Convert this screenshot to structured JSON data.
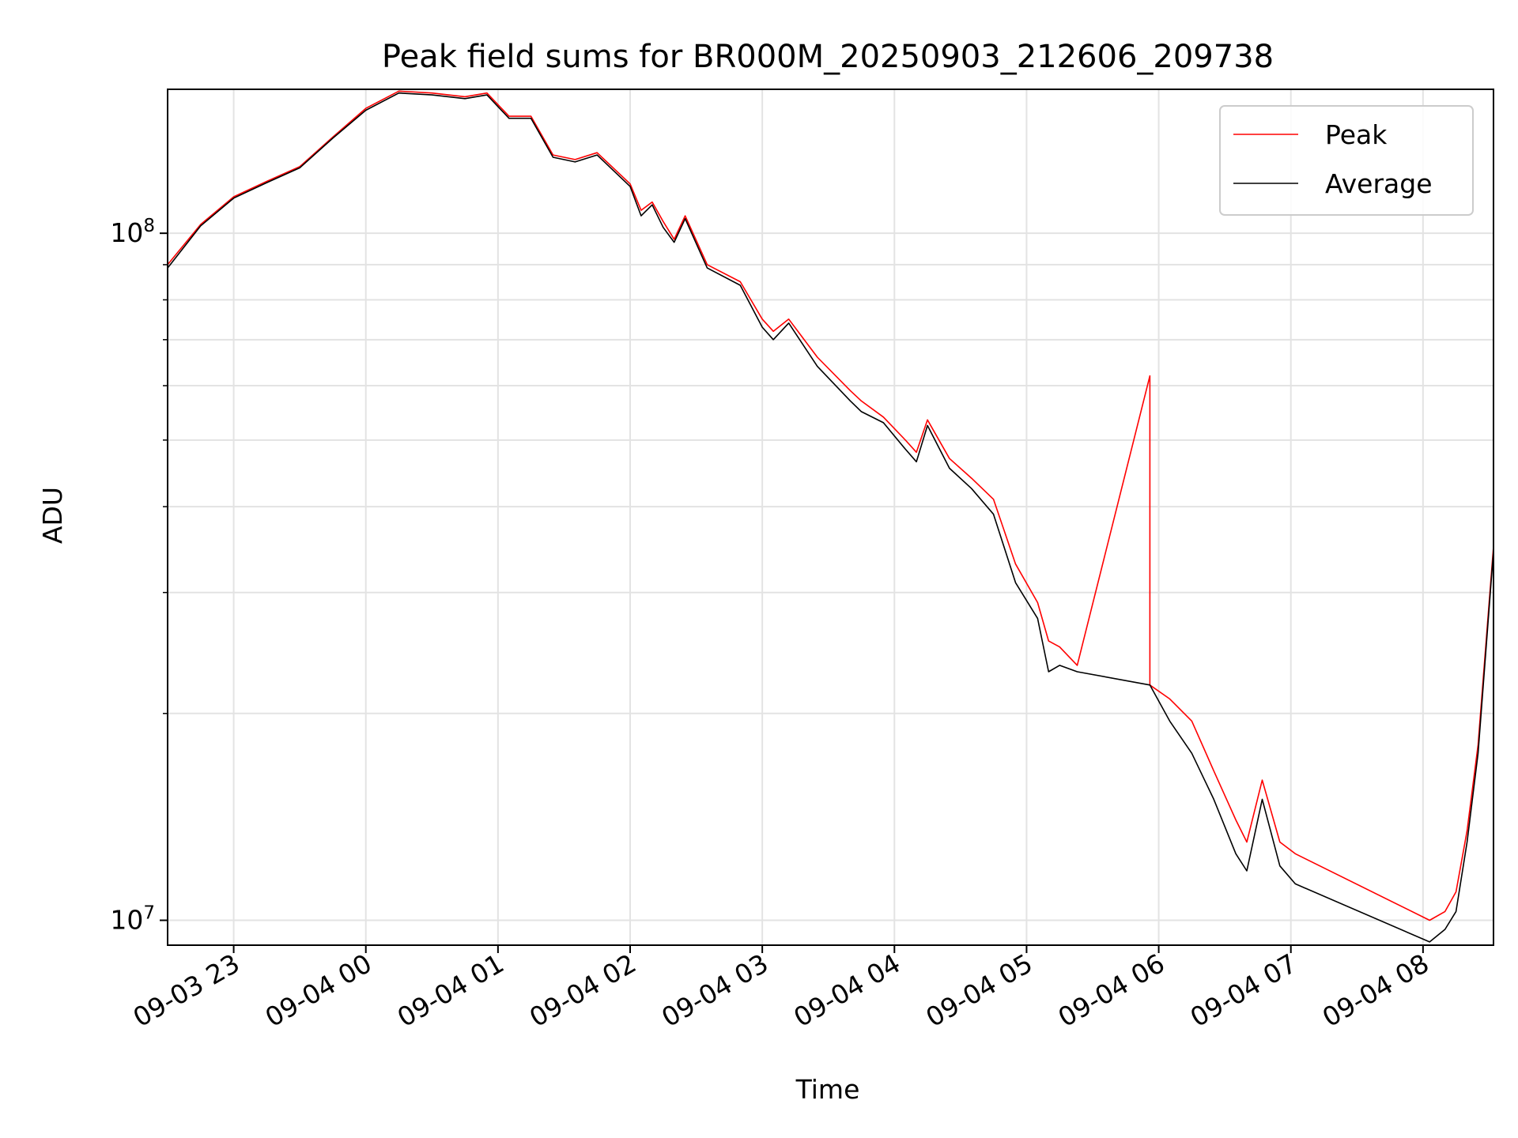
{
  "chart_data": {
    "type": "line",
    "title": "Peak field sums for BR000M_20250903_212606_209738",
    "xlabel": "Time",
    "ylabel": "ADU",
    "x_scale": "time",
    "y_scale": "log",
    "xlim": [
      "2025-09-03 22:30",
      "2025-09-04 08:32"
    ],
    "ylim": [
      9200000,
      162000000
    ],
    "x_ticks": [
      {
        "t": "2025-09-03 23:00",
        "label": "09-03 23"
      },
      {
        "t": "2025-09-04 00:00",
        "label": "09-04 00"
      },
      {
        "t": "2025-09-04 01:00",
        "label": "09-04 01"
      },
      {
        "t": "2025-09-04 02:00",
        "label": "09-04 02"
      },
      {
        "t": "2025-09-04 03:00",
        "label": "09-04 03"
      },
      {
        "t": "2025-09-04 04:00",
        "label": "09-04 04"
      },
      {
        "t": "2025-09-04 05:00",
        "label": "09-04 05"
      },
      {
        "t": "2025-09-04 06:00",
        "label": "09-04 06"
      },
      {
        "t": "2025-09-04 07:00",
        "label": "09-04 07"
      },
      {
        "t": "2025-09-04 08:00",
        "label": "09-04 08"
      }
    ],
    "y_ticks_major": [
      {
        "value": 10000000,
        "base": "10",
        "exp": "7"
      },
      {
        "value": 100000000,
        "base": "10",
        "exp": "8"
      }
    ],
    "y_ticks_minor": [
      20000000,
      30000000,
      40000000,
      50000000,
      60000000,
      70000000,
      80000000,
      90000000
    ],
    "grid": true,
    "legend_position": "top-right",
    "series": [
      {
        "name": "Peak",
        "color": "#ff0000",
        "points": [
          [
            "2025-09-03 22:30",
            90000000
          ],
          [
            "2025-09-03 22:45",
            103000000
          ],
          [
            "2025-09-03 23:00",
            113000000
          ],
          [
            "2025-09-03 23:15",
            119000000
          ],
          [
            "2025-09-03 23:30",
            125000000
          ],
          [
            "2025-09-03 23:45",
            138000000
          ],
          [
            "2025-09-04 00:00",
            152000000
          ],
          [
            "2025-09-04 00:15",
            161000000
          ],
          [
            "2025-09-04 00:30",
            160000000
          ],
          [
            "2025-09-04 00:45",
            158000000
          ],
          [
            "2025-09-04 00:55",
            160000000
          ],
          [
            "2025-09-04 01:05",
            148000000
          ],
          [
            "2025-09-04 01:15",
            148000000
          ],
          [
            "2025-09-04 01:25",
            130000000
          ],
          [
            "2025-09-04 01:35",
            128000000
          ],
          [
            "2025-09-04 01:45",
            131000000
          ],
          [
            "2025-09-04 02:00",
            118000000
          ],
          [
            "2025-09-04 02:05",
            108000000
          ],
          [
            "2025-09-04 02:10",
            111000000
          ],
          [
            "2025-09-04 02:15",
            104000000
          ],
          [
            "2025-09-04 02:20",
            98000000
          ],
          [
            "2025-09-04 02:25",
            106000000
          ],
          [
            "2025-09-04 02:35",
            90000000
          ],
          [
            "2025-09-04 02:50",
            85000000
          ],
          [
            "2025-09-04 03:00",
            75000000
          ],
          [
            "2025-09-04 03:05",
            72000000
          ],
          [
            "2025-09-04 03:12",
            75000000
          ],
          [
            "2025-09-04 03:25",
            66000000
          ],
          [
            "2025-09-04 03:40",
            59000000
          ],
          [
            "2025-09-04 03:45",
            57000000
          ],
          [
            "2025-09-04 03:55",
            54000000
          ],
          [
            "2025-09-04 04:05",
            50000000
          ],
          [
            "2025-09-04 04:10",
            48000000
          ],
          [
            "2025-09-04 04:15",
            53500000
          ],
          [
            "2025-09-04 04:25",
            47000000
          ],
          [
            "2025-09-04 04:35",
            44000000
          ],
          [
            "2025-09-04 04:45",
            41000000
          ],
          [
            "2025-09-04 04:55",
            33000000
          ],
          [
            "2025-09-04 05:05",
            29000000
          ],
          [
            "2025-09-04 05:10",
            25500000
          ],
          [
            "2025-09-04 05:15",
            25000000
          ],
          [
            "2025-09-04 05:23",
            23500000
          ],
          [
            "2025-09-04 05:56",
            62000000
          ],
          [
            "2025-09-04 05:56",
            22000000
          ],
          [
            "2025-09-04 06:05",
            21000000
          ],
          [
            "2025-09-04 06:15",
            19500000
          ],
          [
            "2025-09-04 06:25",
            16500000
          ],
          [
            "2025-09-04 06:35",
            14000000
          ],
          [
            "2025-09-04 06:40",
            13000000
          ],
          [
            "2025-09-04 06:47",
            16000000
          ],
          [
            "2025-09-04 06:55",
            13000000
          ],
          [
            "2025-09-04 07:02",
            12500000
          ],
          [
            "2025-09-04 08:03",
            10000000
          ],
          [
            "2025-09-04 08:10",
            10300000
          ],
          [
            "2025-09-04 08:15",
            11000000
          ],
          [
            "2025-09-04 08:20",
            13500000
          ],
          [
            "2025-09-04 08:25",
            18000000
          ],
          [
            "2025-09-04 08:32",
            35000000
          ]
        ]
      },
      {
        "name": "Average",
        "color": "#000000",
        "points": [
          [
            "2025-09-03 22:30",
            89000000
          ],
          [
            "2025-09-03 22:45",
            102500000
          ],
          [
            "2025-09-03 23:00",
            112500000
          ],
          [
            "2025-09-03 23:15",
            118500000
          ],
          [
            "2025-09-03 23:30",
            124500000
          ],
          [
            "2025-09-03 23:45",
            137500000
          ],
          [
            "2025-09-04 00:00",
            151000000
          ],
          [
            "2025-09-04 00:15",
            160000000
          ],
          [
            "2025-09-04 00:30",
            159000000
          ],
          [
            "2025-09-04 00:45",
            157000000
          ],
          [
            "2025-09-04 00:55",
            159000000
          ],
          [
            "2025-09-04 01:05",
            147000000
          ],
          [
            "2025-09-04 01:15",
            147000000
          ],
          [
            "2025-09-04 01:25",
            129000000
          ],
          [
            "2025-09-04 01:35",
            127000000
          ],
          [
            "2025-09-04 01:45",
            130000000
          ],
          [
            "2025-09-04 02:00",
            117000000
          ],
          [
            "2025-09-04 02:05",
            106000000
          ],
          [
            "2025-09-04 02:10",
            110000000
          ],
          [
            "2025-09-04 02:15",
            102000000
          ],
          [
            "2025-09-04 02:20",
            97000000
          ],
          [
            "2025-09-04 02:25",
            105000000
          ],
          [
            "2025-09-04 02:35",
            89000000
          ],
          [
            "2025-09-04 02:50",
            84000000
          ],
          [
            "2025-09-04 03:00",
            73000000
          ],
          [
            "2025-09-04 03:05",
            70000000
          ],
          [
            "2025-09-04 03:12",
            74000000
          ],
          [
            "2025-09-04 03:25",
            64000000
          ],
          [
            "2025-09-04 03:40",
            57000000
          ],
          [
            "2025-09-04 03:45",
            55000000
          ],
          [
            "2025-09-04 03:55",
            53000000
          ],
          [
            "2025-09-04 04:05",
            48500000
          ],
          [
            "2025-09-04 04:10",
            46500000
          ],
          [
            "2025-09-04 04:15",
            52500000
          ],
          [
            "2025-09-04 04:25",
            45500000
          ],
          [
            "2025-09-04 04:35",
            42500000
          ],
          [
            "2025-09-04 04:45",
            39000000
          ],
          [
            "2025-09-04 04:55",
            31000000
          ],
          [
            "2025-09-04 05:05",
            27500000
          ],
          [
            "2025-09-04 05:10",
            23000000
          ],
          [
            "2025-09-04 05:15",
            23500000
          ],
          [
            "2025-09-04 05:23",
            23000000
          ],
          [
            "2025-09-04 05:56",
            22000000
          ],
          [
            "2025-09-04 06:05",
            19500000
          ],
          [
            "2025-09-04 06:15",
            17500000
          ],
          [
            "2025-09-04 06:25",
            15000000
          ],
          [
            "2025-09-04 06:35",
            12500000
          ],
          [
            "2025-09-04 06:40",
            11800000
          ],
          [
            "2025-09-04 06:47",
            15000000
          ],
          [
            "2025-09-04 06:55",
            12000000
          ],
          [
            "2025-09-04 07:02",
            11300000
          ],
          [
            "2025-09-04 08:03",
            9300000
          ],
          [
            "2025-09-04 08:10",
            9700000
          ],
          [
            "2025-09-04 08:15",
            10300000
          ],
          [
            "2025-09-04 08:20",
            13000000
          ],
          [
            "2025-09-04 08:25",
            17500000
          ],
          [
            "2025-09-04 08:32",
            34500000
          ]
        ]
      }
    ]
  }
}
